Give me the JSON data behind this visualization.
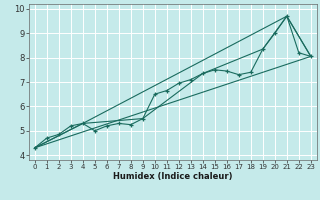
{
  "xlabel": "Humidex (Indice chaleur)",
  "bg_color": "#c5eaea",
  "grid_color": "#ffffff",
  "line_color": "#1a6b5e",
  "xmin": -0.5,
  "xmax": 23.5,
  "ymin": 3.8,
  "ymax": 10.2,
  "x_ticks": [
    0,
    1,
    2,
    3,
    4,
    5,
    6,
    7,
    8,
    9,
    10,
    11,
    12,
    13,
    14,
    15,
    16,
    17,
    18,
    19,
    20,
    21,
    22,
    23
  ],
  "y_ticks": [
    4,
    5,
    6,
    7,
    8,
    9,
    10
  ],
  "line1_x": [
    0,
    1,
    2,
    3,
    4,
    5,
    6,
    7,
    8,
    9,
    10,
    11,
    12,
    13,
    14,
    15,
    16,
    17,
    18,
    19,
    20,
    21,
    22,
    23
  ],
  "line1_y": [
    4.3,
    4.7,
    4.85,
    5.2,
    5.3,
    5.0,
    5.2,
    5.3,
    5.25,
    5.5,
    6.5,
    6.65,
    6.95,
    7.1,
    7.35,
    7.5,
    7.45,
    7.3,
    7.4,
    8.35,
    9.0,
    9.7,
    8.2,
    8.05
  ],
  "line2_x": [
    0,
    4,
    21,
    23
  ],
  "line2_y": [
    4.3,
    5.3,
    9.7,
    8.05
  ],
  "line3_x": [
    0,
    4,
    9,
    14,
    19,
    21,
    23
  ],
  "line3_y": [
    4.3,
    5.3,
    5.5,
    7.35,
    8.35,
    9.7,
    8.05
  ],
  "line4_x": [
    0,
    23
  ],
  "line4_y": [
    4.3,
    8.05
  ],
  "xlabel_fontsize": 6,
  "tick_fontsize": 5,
  "ylabel_fontsize": 6
}
